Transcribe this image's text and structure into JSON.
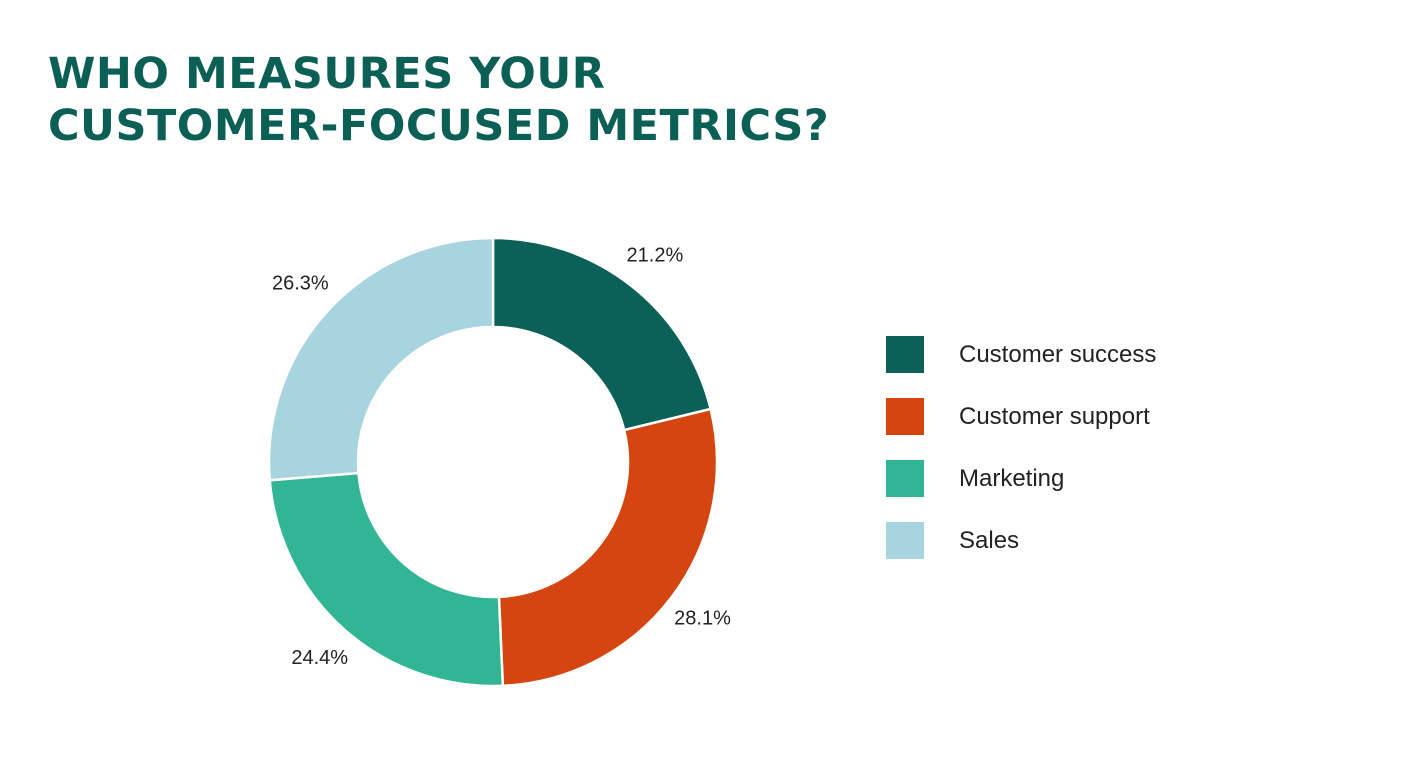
{
  "title": {
    "line1": "WHO MEASURES YOUR",
    "line2": "CUSTOMER-FOCUSED METRICS?"
  },
  "chart_data": {
    "type": "pie",
    "style": "donut",
    "title": "WHO MEASURES YOUR CUSTOMER-FOCUSED METRICS?",
    "legend_position": "right",
    "slices": [
      {
        "label": "Customer success",
        "value": 21.2,
        "display": "21.2%",
        "color": "#0b6157"
      },
      {
        "label": "Customer support",
        "value": 28.1,
        "display": "28.1%",
        "color": "#d4450f"
      },
      {
        "label": "Marketing",
        "value": 24.4,
        "display": "24.4%",
        "color": "#32b594"
      },
      {
        "label": "Sales",
        "value": 26.3,
        "display": "26.3%",
        "color": "#a8d4df"
      }
    ]
  },
  "legend": {
    "items": [
      {
        "label": "Customer success",
        "color": "#0b6157"
      },
      {
        "label": "Customer support",
        "color": "#d4450f"
      },
      {
        "label": "Marketing",
        "color": "#32b594"
      },
      {
        "label": "Sales",
        "color": "#a8d4df"
      }
    ]
  },
  "colors": {
    "title": "#0b5f55",
    "text": "#222222",
    "background": "#ffffff"
  }
}
